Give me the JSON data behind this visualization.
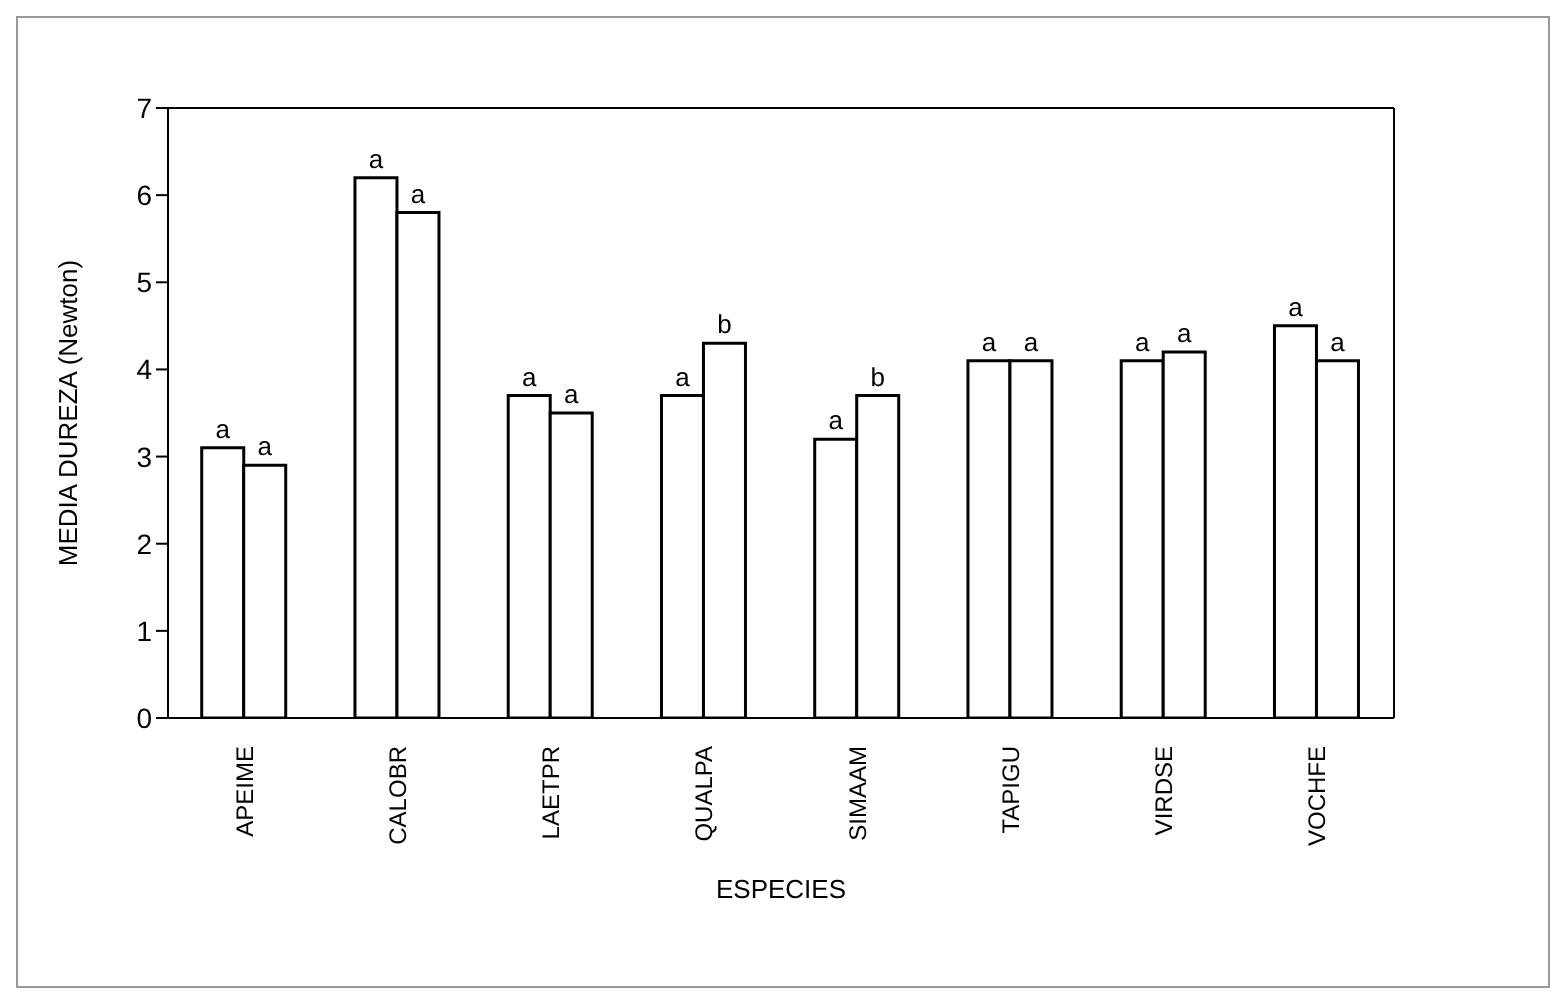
{
  "chart_data": {
    "type": "bar",
    "xlabel": "ESPECIES",
    "ylabel": "MEDIA DUREZA (Newton)",
    "categories": [
      "APEIME",
      "CALOBR",
      "LAETPR",
      "QUALPA",
      "SIMAAM",
      "TAPIGU",
      "VIRDSE",
      "VOCHFE"
    ],
    "series": [
      {
        "color": "#ffffff",
        "values": [
          3.1,
          6.2,
          3.7,
          3.7,
          3.2,
          4.1,
          4.1,
          4.5
        ],
        "value_labels": [
          "a",
          "a",
          "a",
          "a",
          "a",
          "a",
          "a",
          "a"
        ]
      },
      {
        "color": "#ffffff",
        "values": [
          2.9,
          5.8,
          3.5,
          4.3,
          3.7,
          4.1,
          4.2,
          4.1
        ],
        "value_labels": [
          "a",
          "a",
          "a",
          "b",
          "b",
          "a",
          "a",
          "a"
        ]
      }
    ],
    "ylim": [
      0,
      7
    ],
    "yticks": [
      0,
      1,
      2,
      3,
      4,
      5,
      6,
      7
    ]
  }
}
